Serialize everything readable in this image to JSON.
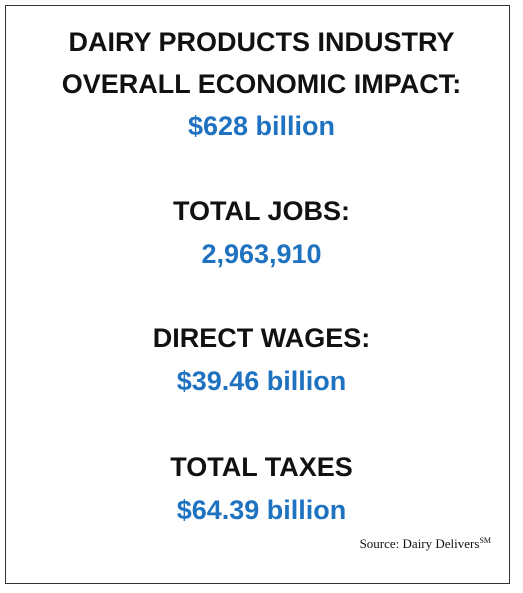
{
  "title": {
    "lines": [
      "DAIRY PRODUCTS INDUSTRY",
      "OVERALL ECONOMIC IMPACT:"
    ],
    "value": "$628 billion"
  },
  "stats": [
    {
      "label": "TOTAL JOBS:",
      "value": "2,963,910"
    },
    {
      "label": "DIRECT WAGES:",
      "value": "$39.46 billion"
    },
    {
      "label": "TOTAL TAXES",
      "value": "$64.39 billion"
    }
  ],
  "source": {
    "text": "Source: Dairy Delivers",
    "mark": "SM"
  }
}
